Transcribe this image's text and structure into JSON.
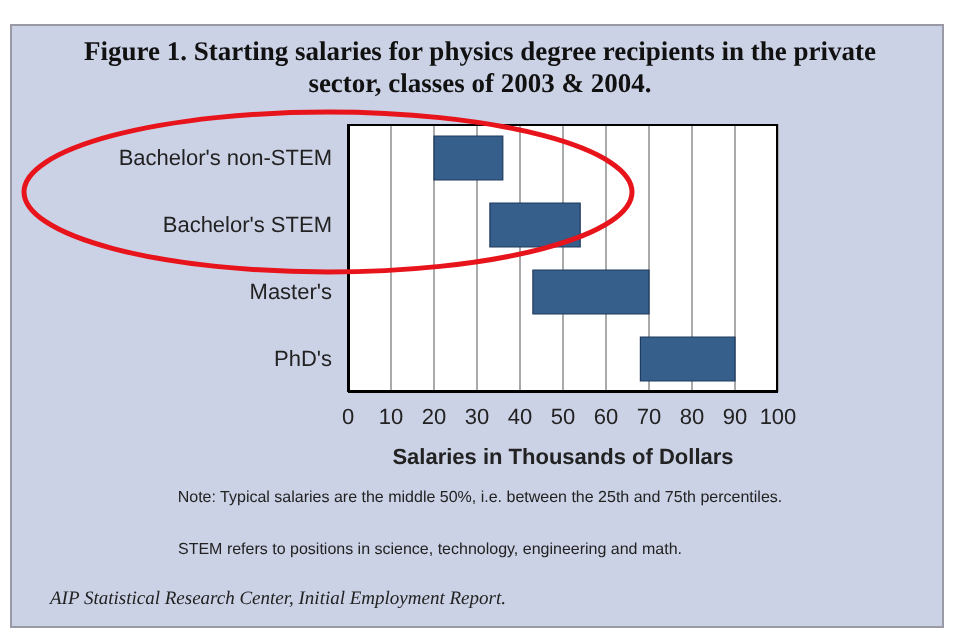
{
  "chart_data": {
    "type": "bar",
    "orientation": "horizontal",
    "title": "Figure 1.  Starting salaries for physics degree recipients in the  private sector, classes of 2003 & 2004.",
    "categories": [
      "Bachelor's non-STEM",
      "Bachelor's STEM",
      "Master's",
      "PhD's"
    ],
    "base": [
      20,
      33,
      43,
      68
    ],
    "values": [
      16,
      21,
      27,
      22
    ],
    "color": "#365f8c",
    "xlabel": "Salaries in Thousands of Dollars",
    "xlim": [
      0,
      100
    ],
    "xticks": [
      0,
      10,
      20,
      30,
      40,
      50,
      60,
      70,
      80,
      90,
      100
    ],
    "grid": "x",
    "legend": false,
    "annotations": [
      "Note: Typical salaries are the middle 50%, i.e. between the 25th and 75th percentiles.",
      "STEM refers to positions in science, technology, engineering and math.",
      "AIP Statistical Research Center, Initial Employment Report."
    ]
  }
}
